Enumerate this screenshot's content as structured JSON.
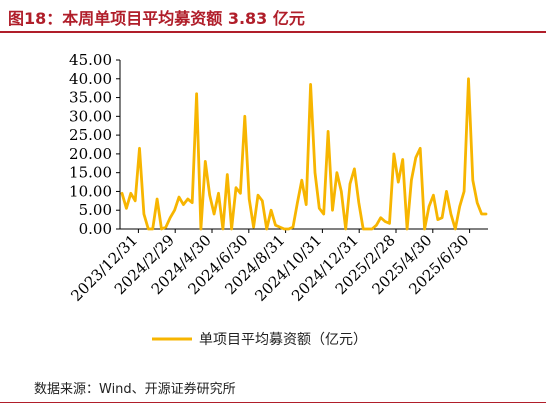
{
  "header": {
    "title": "图18：本周单项目平均募资额 3.83 亿元"
  },
  "footer": {
    "source": "数据来源：Wind、开源证券研究所"
  },
  "colors": {
    "title": "#b01e2a",
    "series": "#f7b500",
    "axis": "#000000"
  },
  "chart_data": {
    "type": "line",
    "title": "",
    "xlabel": "",
    "ylabel": "",
    "ylim": [
      0,
      45
    ],
    "yticks": [
      "0.00",
      "5.00",
      "10.00",
      "15.00",
      "20.00",
      "25.00",
      "30.00",
      "35.00",
      "40.00",
      "45.00"
    ],
    "xticks": [
      "2023/12/31",
      "2024/2/29",
      "2024/4/30",
      "2024/6/30",
      "2024/8/31",
      "2024/10/31",
      "2024/12/31",
      "2025/2/28",
      "2025/4/30",
      "2025/6/30"
    ],
    "grid": false,
    "legend": "bottom",
    "series": [
      {
        "name": "单项目平均募资额（亿元）",
        "values": [
          9.5,
          5.5,
          9.5,
          7.5,
          21.5,
          4,
          0,
          0,
          8,
          0,
          0.5,
          3,
          5,
          8.5,
          6.5,
          8,
          7,
          36,
          0,
          18,
          9,
          4,
          9.5,
          0,
          14.5,
          0,
          11,
          9.5,
          30,
          8,
          0.5,
          9,
          7.5,
          0,
          5,
          1,
          0.5,
          0,
          0,
          0.5,
          7,
          13,
          6.5,
          38.5,
          15,
          5.5,
          4,
          26,
          5,
          15,
          10,
          0,
          12,
          16,
          7,
          0,
          0,
          0,
          1,
          3,
          2,
          1.5,
          20,
          12.5,
          18.5,
          0,
          13,
          19,
          21.5,
          0,
          6,
          9,
          2.5,
          3,
          10,
          4,
          0,
          6,
          10,
          40,
          13,
          7,
          4,
          4
        ]
      }
    ]
  }
}
